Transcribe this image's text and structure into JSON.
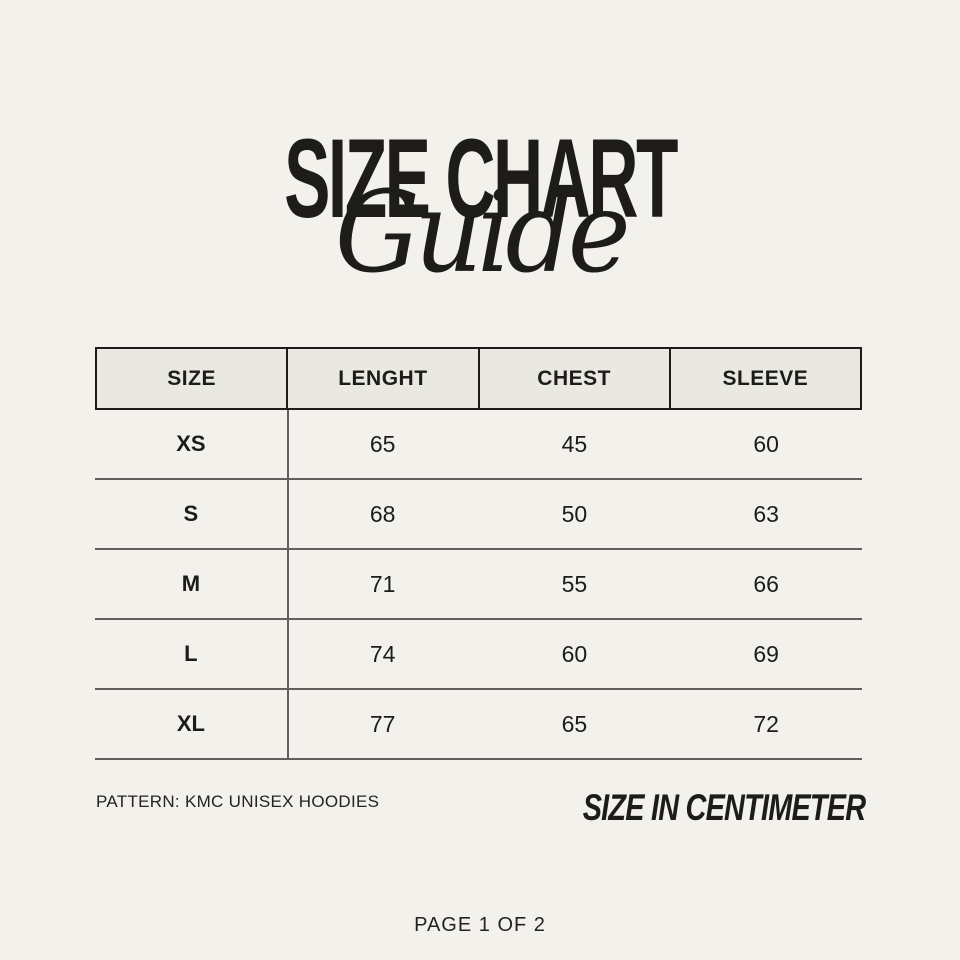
{
  "title": {
    "main": "SIZE CHART",
    "script": "Guide"
  },
  "table": {
    "columns": [
      "SIZE",
      "LENGHT",
      "CHEST",
      "SLEEVE"
    ],
    "rows": [
      {
        "size": "XS",
        "length": "65",
        "chest": "45",
        "sleeve": "60"
      },
      {
        "size": "S",
        "length": "68",
        "chest": "50",
        "sleeve": "63"
      },
      {
        "size": "M",
        "length": "71",
        "chest": "55",
        "sleeve": "66"
      },
      {
        "size": "L",
        "length": "74",
        "chest": "60",
        "sleeve": "69"
      },
      {
        "size": "XL",
        "length": "77",
        "chest": "65",
        "sleeve": "72"
      }
    ]
  },
  "notes": {
    "pattern": "PATTERN: KMC UNISEX HOODIES",
    "unit": "SIZE IN CENTIMETER"
  },
  "footer": {
    "page": "PAGE 1 OF 2"
  },
  "colors": {
    "page_background": "#f2f1ec",
    "header_background": "#e9e8e1",
    "border_black": "#1d1c1a",
    "separator_gray": "#605f5b",
    "text": "#1d1c1a"
  }
}
